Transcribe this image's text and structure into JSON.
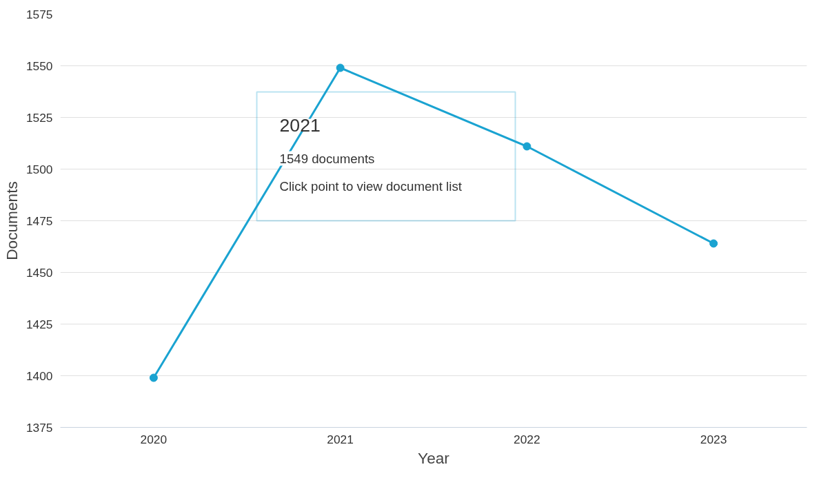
{
  "chart_data": {
    "type": "line",
    "xlabel": "Year",
    "ylabel": "Documents",
    "categories": [
      "2020",
      "2021",
      "2022",
      "2023"
    ],
    "series": [
      {
        "color": "#1aa3d1",
        "values": [
          1399,
          1549,
          1511,
          1464
        ]
      }
    ],
    "ylim": [
      1375,
      1575
    ],
    "yticks": [
      1375,
      1400,
      1425,
      1450,
      1475,
      1500,
      1525,
      1550,
      1575
    ],
    "grid": "y",
    "marker": "circle",
    "line_style": "solid",
    "annotations": [
      "2021",
      "1549 documents",
      "Click point to view document list"
    ]
  }
}
